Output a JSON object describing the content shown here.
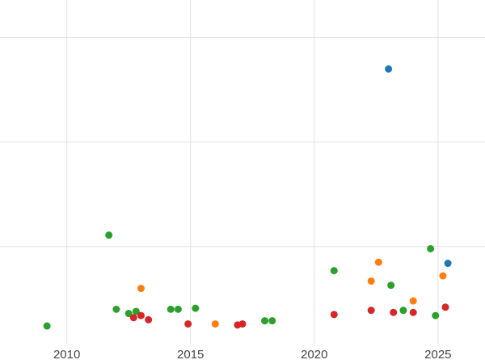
{
  "chart": {
    "x_tick_labels": [
      "2010",
      "2015",
      "2020",
      "2025"
    ]
  },
  "chart_data": {
    "type": "scatter",
    "title": "",
    "xlabel": "",
    "ylabel": "",
    "xlim": [
      2007.3,
      2026.9
    ],
    "ylim": [
      0.07,
      3.36
    ],
    "x_ticks": [
      2010,
      2015,
      2020,
      2025
    ],
    "y_gridlines": [
      1,
      2,
      3
    ],
    "grid": true,
    "legend": "none",
    "grid_color": "#e2e2e2",
    "background_color": "#ffffff",
    "tick_label_color": "#444444",
    "marker_radius": 4.5,
    "series": [
      {
        "name": "blue",
        "color": "#1f77b4",
        "points": [
          [
            2023.0,
            2.7
          ],
          [
            2025.4,
            0.84
          ]
        ]
      },
      {
        "name": "orange",
        "color": "#ff7f0e",
        "points": [
          [
            2013.0,
            0.6
          ],
          [
            2016.0,
            0.26
          ],
          [
            2022.3,
            0.67
          ],
          [
            2022.6,
            0.85
          ],
          [
            2024.0,
            0.48
          ],
          [
            2025.2,
            0.72
          ]
        ]
      },
      {
        "name": "green",
        "color": "#2ca02c",
        "points": [
          [
            2009.2,
            0.24
          ],
          [
            2011.7,
            1.11
          ],
          [
            2012.0,
            0.4
          ],
          [
            2012.5,
            0.36
          ],
          [
            2012.8,
            0.38
          ],
          [
            2014.2,
            0.4
          ],
          [
            2014.5,
            0.4
          ],
          [
            2015.2,
            0.41
          ],
          [
            2018.0,
            0.29
          ],
          [
            2018.3,
            0.29
          ],
          [
            2020.8,
            0.77
          ],
          [
            2023.1,
            0.63
          ],
          [
            2023.6,
            0.39
          ],
          [
            2024.7,
            0.98
          ],
          [
            2024.9,
            0.34
          ]
        ]
      },
      {
        "name": "red",
        "color": "#d62728",
        "points": [
          [
            2012.7,
            0.32
          ],
          [
            2013.0,
            0.34
          ],
          [
            2013.3,
            0.3
          ],
          [
            2014.9,
            0.26
          ],
          [
            2016.9,
            0.25
          ],
          [
            2017.1,
            0.26
          ],
          [
            2020.8,
            0.35
          ],
          [
            2022.3,
            0.39
          ],
          [
            2023.2,
            0.37
          ],
          [
            2024.0,
            0.37
          ],
          [
            2025.3,
            0.42
          ]
        ]
      }
    ]
  }
}
